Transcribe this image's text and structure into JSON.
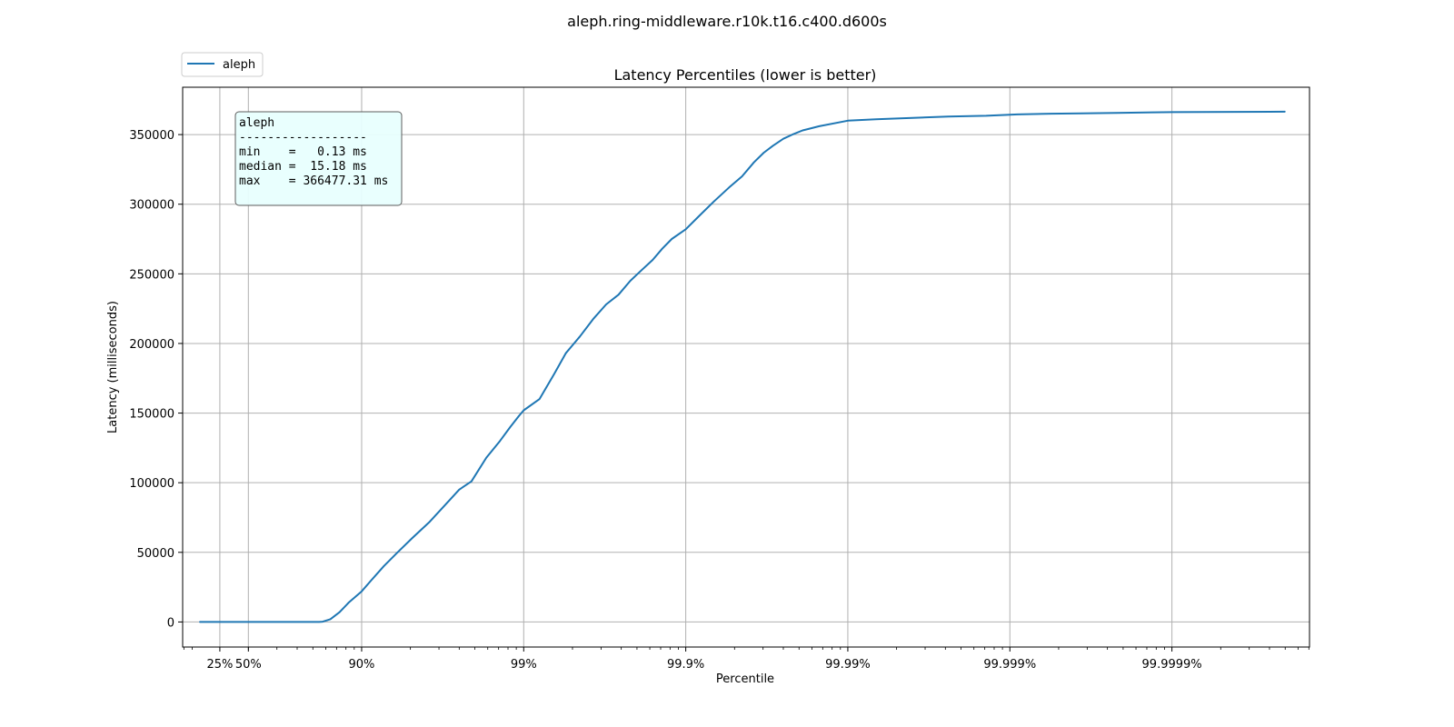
{
  "chart_data": {
    "type": "line",
    "suptitle": "aleph.ring-middleware.r10k.t16.c400.d600s",
    "title": "Latency Percentiles (lower is better)",
    "xlabel": "Percentile",
    "ylabel": "Latency (milliseconds)",
    "x_scale": "log of 1/(1 - percentile/100)",
    "x_ticks": [
      "25%",
      "50%",
      "90%",
      "99%",
      "99.9%",
      "99.99%",
      "99.999%",
      "99.9999%"
    ],
    "x_range": [
      "0%",
      "99.99998%"
    ],
    "y_ticks": [
      "0",
      "50000",
      "100000",
      "150000",
      "200000",
      "250000",
      "300000",
      "350000"
    ],
    "ylim": [
      -18000,
      384000
    ],
    "grid": true,
    "legend": {
      "position": "top-left, above plot",
      "entries": [
        "aleph"
      ]
    },
    "stats_box": {
      "lines": [
        "aleph",
        "------------------",
        "min    =   0.13 ms",
        "median =  15.18 ms",
        "max    = 366477.31 ms"
      ]
    },
    "colors": {
      "aleph": "#1f77b4",
      "grid": "#b0b0b0",
      "stats_box_fill": "#e8fffe"
    },
    "series": [
      {
        "name": "aleph",
        "x": [
          0,
          25,
          50,
          75,
          80,
          81.7,
          82.6,
          84.4,
          86.3,
          88.0,
          90.0,
          91.3,
          92.7,
          94.0,
          95.1,
          96.2,
          97.0,
          97.5,
          97.9,
          98.3,
          98.6,
          98.79,
          98.93,
          99.0,
          99.2,
          99.35,
          99.45,
          99.55,
          99.63,
          99.69,
          99.74,
          99.78,
          99.81,
          99.84,
          99.86,
          99.878,
          99.9,
          99.918,
          99.933,
          99.946,
          99.955,
          99.962,
          99.967,
          99.971,
          99.975,
          99.978,
          99.981,
          99.985,
          99.99,
          99.9933,
          99.996,
          99.9976,
          99.9986,
          99.9991,
          99.99944,
          99.99964,
          99.99978,
          99.99987,
          99.9999,
          99.99998
        ],
        "y": [
          0,
          0,
          0,
          0,
          0,
          0,
          200,
          2000,
          7000,
          14000,
          22000,
          30000,
          40000,
          50000,
          60000,
          72000,
          85000,
          95000,
          101000,
          118000,
          130000,
          140000,
          148000,
          152000,
          160000,
          178000,
          193000,
          205000,
          218000,
          228000,
          235000,
          245000,
          252000,
          260000,
          268000,
          275000,
          282000,
          292000,
          302000,
          312000,
          320000,
          330000,
          337000,
          342000,
          347000,
          350000,
          353000,
          356000,
          360000,
          361000,
          362000,
          363000,
          363500,
          364500,
          365000,
          365300,
          365600,
          366000,
          366100,
          366477
        ]
      }
    ]
  }
}
